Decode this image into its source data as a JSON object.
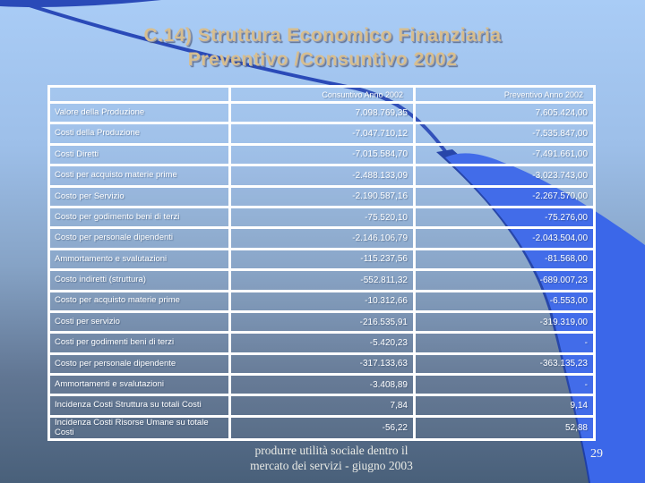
{
  "slide": {
    "title_line1": "C.14) Struttura Economico Finanziaria",
    "title_line2": "Preventivo /Consuntivo 2002",
    "footer_line1": "produrre utilità sociale dentro il",
    "footer_line2": "mercato dei servizi - giugno 2003",
    "page_number": "29"
  },
  "table": {
    "columns": [
      "",
      "Consuntivo Anno 2002",
      "Preventivo Anno 2002"
    ],
    "rows": [
      {
        "label": "Valore della Produzione",
        "consuntivo": "7.098.769,35",
        "preventivo": "7.605.424,00"
      },
      {
        "label": "Costi della Produzione",
        "consuntivo": "-7.047.710,12",
        "preventivo": "-7.535.847,00"
      },
      {
        "label": "Costi Diretti",
        "consuntivo": "-7.015.584,70",
        "preventivo": "-7.491.661,00"
      },
      {
        "label": "Costi per acquisto materie prime",
        "consuntivo": "-2.488.133,09",
        "preventivo": "-3.023.743,00"
      },
      {
        "label": "Costo per Servizio",
        "consuntivo": "-2.190.587,16",
        "preventivo": "-2.267.570,00"
      },
      {
        "label": "Costo per godimento beni di terzi",
        "consuntivo": "-75.520,10",
        "preventivo": "-75.276,00"
      },
      {
        "label": "Costo per personale dipendenti",
        "consuntivo": "-2.146.106,79",
        "preventivo": "-2.043.504,00"
      },
      {
        "label": "Ammortamento e svalutazioni",
        "consuntivo": "-115.237,56",
        "preventivo": "-81.568,00"
      },
      {
        "label": "Costo indiretti (struttura)",
        "consuntivo": "-552.811,32",
        "preventivo": "-689.007,23"
      },
      {
        "label": "Costo per acquisto materie prime",
        "consuntivo": "-10.312,66",
        "preventivo": "-6.553,00"
      },
      {
        "label": "Costi per servizio",
        "consuntivo": "-216.535,91",
        "preventivo": "-319.319,00"
      },
      {
        "label": "Costi per godimenti beni di terzi",
        "consuntivo": "-5.420,23",
        "preventivo": "-"
      },
      {
        "label": "Costo per personale dipendente",
        "consuntivo": "-317.133,63",
        "preventivo": "-363.135,23"
      },
      {
        "label": "Ammortamenti e svalutazioni",
        "consuntivo": "-3.408,89",
        "preventivo": "-"
      },
      {
        "label": "Incidenza Costi Struttura su totali Costi",
        "consuntivo": "7,84",
        "preventivo": "9,14"
      },
      {
        "label": "Incidenza Costi Risorse Umane su totale Costi",
        "consuntivo": "-56,22",
        "preventivo": "52,88"
      }
    ]
  },
  "colors": {
    "title_text": "#D7BE8F",
    "table_text": "#FFFFFF",
    "table_border": "#FFFFFF",
    "background_top": "#A9CCF6",
    "background_bottom": "#49607A",
    "swoosh_blue": "#3B67E9",
    "swoosh_navy_edge": "#1F3FA6",
    "curve_line": "#2A4AB8"
  }
}
